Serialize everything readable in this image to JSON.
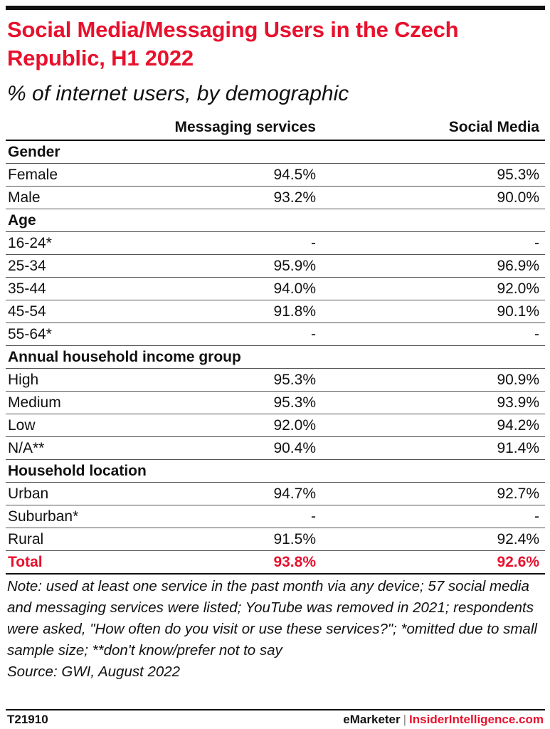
{
  "header": {
    "title": "Social Media/Messaging Users in the Czech Republic, H1 2022",
    "subtitle": "% of internet users, by demographic"
  },
  "columns": [
    "",
    "Messaging services",
    "Social Media"
  ],
  "chart_data": {
    "type": "table",
    "title": "Social Media/Messaging Users in the Czech Republic, H1 2022",
    "subtitle": "% of internet users, by demographic",
    "columns": [
      "Messaging services",
      "Social Media"
    ],
    "rows": [
      {
        "kind": "group",
        "label": "Gender"
      },
      {
        "kind": "row",
        "label": "Female",
        "values": [
          "94.5%",
          "95.3%"
        ]
      },
      {
        "kind": "row",
        "label": "Male",
        "values": [
          "93.2%",
          "90.0%"
        ]
      },
      {
        "kind": "group",
        "label": "Age"
      },
      {
        "kind": "row",
        "label": "16-24*",
        "values": [
          "-",
          "-"
        ]
      },
      {
        "kind": "row",
        "label": "25-34",
        "values": [
          "95.9%",
          "96.9%"
        ]
      },
      {
        "kind": "row",
        "label": "35-44",
        "values": [
          "94.0%",
          "92.0%"
        ]
      },
      {
        "kind": "row",
        "label": "45-54",
        "values": [
          "91.8%",
          "90.1%"
        ]
      },
      {
        "kind": "row",
        "label": "55-64*",
        "values": [
          "-",
          "-"
        ]
      },
      {
        "kind": "group",
        "label": "Annual household income group"
      },
      {
        "kind": "row",
        "label": "High",
        "values": [
          "95.3%",
          "90.9%"
        ]
      },
      {
        "kind": "row",
        "label": "Medium",
        "values": [
          "95.3%",
          "93.9%"
        ]
      },
      {
        "kind": "row",
        "label": "Low",
        "values": [
          "92.0%",
          "94.2%"
        ]
      },
      {
        "kind": "row",
        "label": "N/A**",
        "values": [
          "90.4%",
          "91.4%"
        ]
      },
      {
        "kind": "group",
        "label": "Household location"
      },
      {
        "kind": "row",
        "label": "Urban",
        "values": [
          "94.7%",
          "92.7%"
        ]
      },
      {
        "kind": "row",
        "label": "Suburban*",
        "values": [
          "-",
          "-"
        ]
      },
      {
        "kind": "row",
        "label": "Rural",
        "values": [
          "91.5%",
          "92.4%"
        ]
      },
      {
        "kind": "total",
        "label": "Total",
        "values": [
          "93.8%",
          "92.6%"
        ]
      }
    ]
  },
  "note": "Note: used at least one service in the past month via any device; 57 social media and messaging services were listed; YouTube was removed in 2021; respondents were asked, \"How often do you visit or use these services?\"; *omitted due to small sample size; **don't know/prefer not to say",
  "source": "Source: GWI, August 2022",
  "footer": {
    "chart_id": "T21910",
    "brand_primary": "eMarketer",
    "brand_separator": "|",
    "brand_secondary": "InsiderIntelligence.com"
  },
  "colors": {
    "accent": "#e8112d",
    "text": "#111111"
  }
}
